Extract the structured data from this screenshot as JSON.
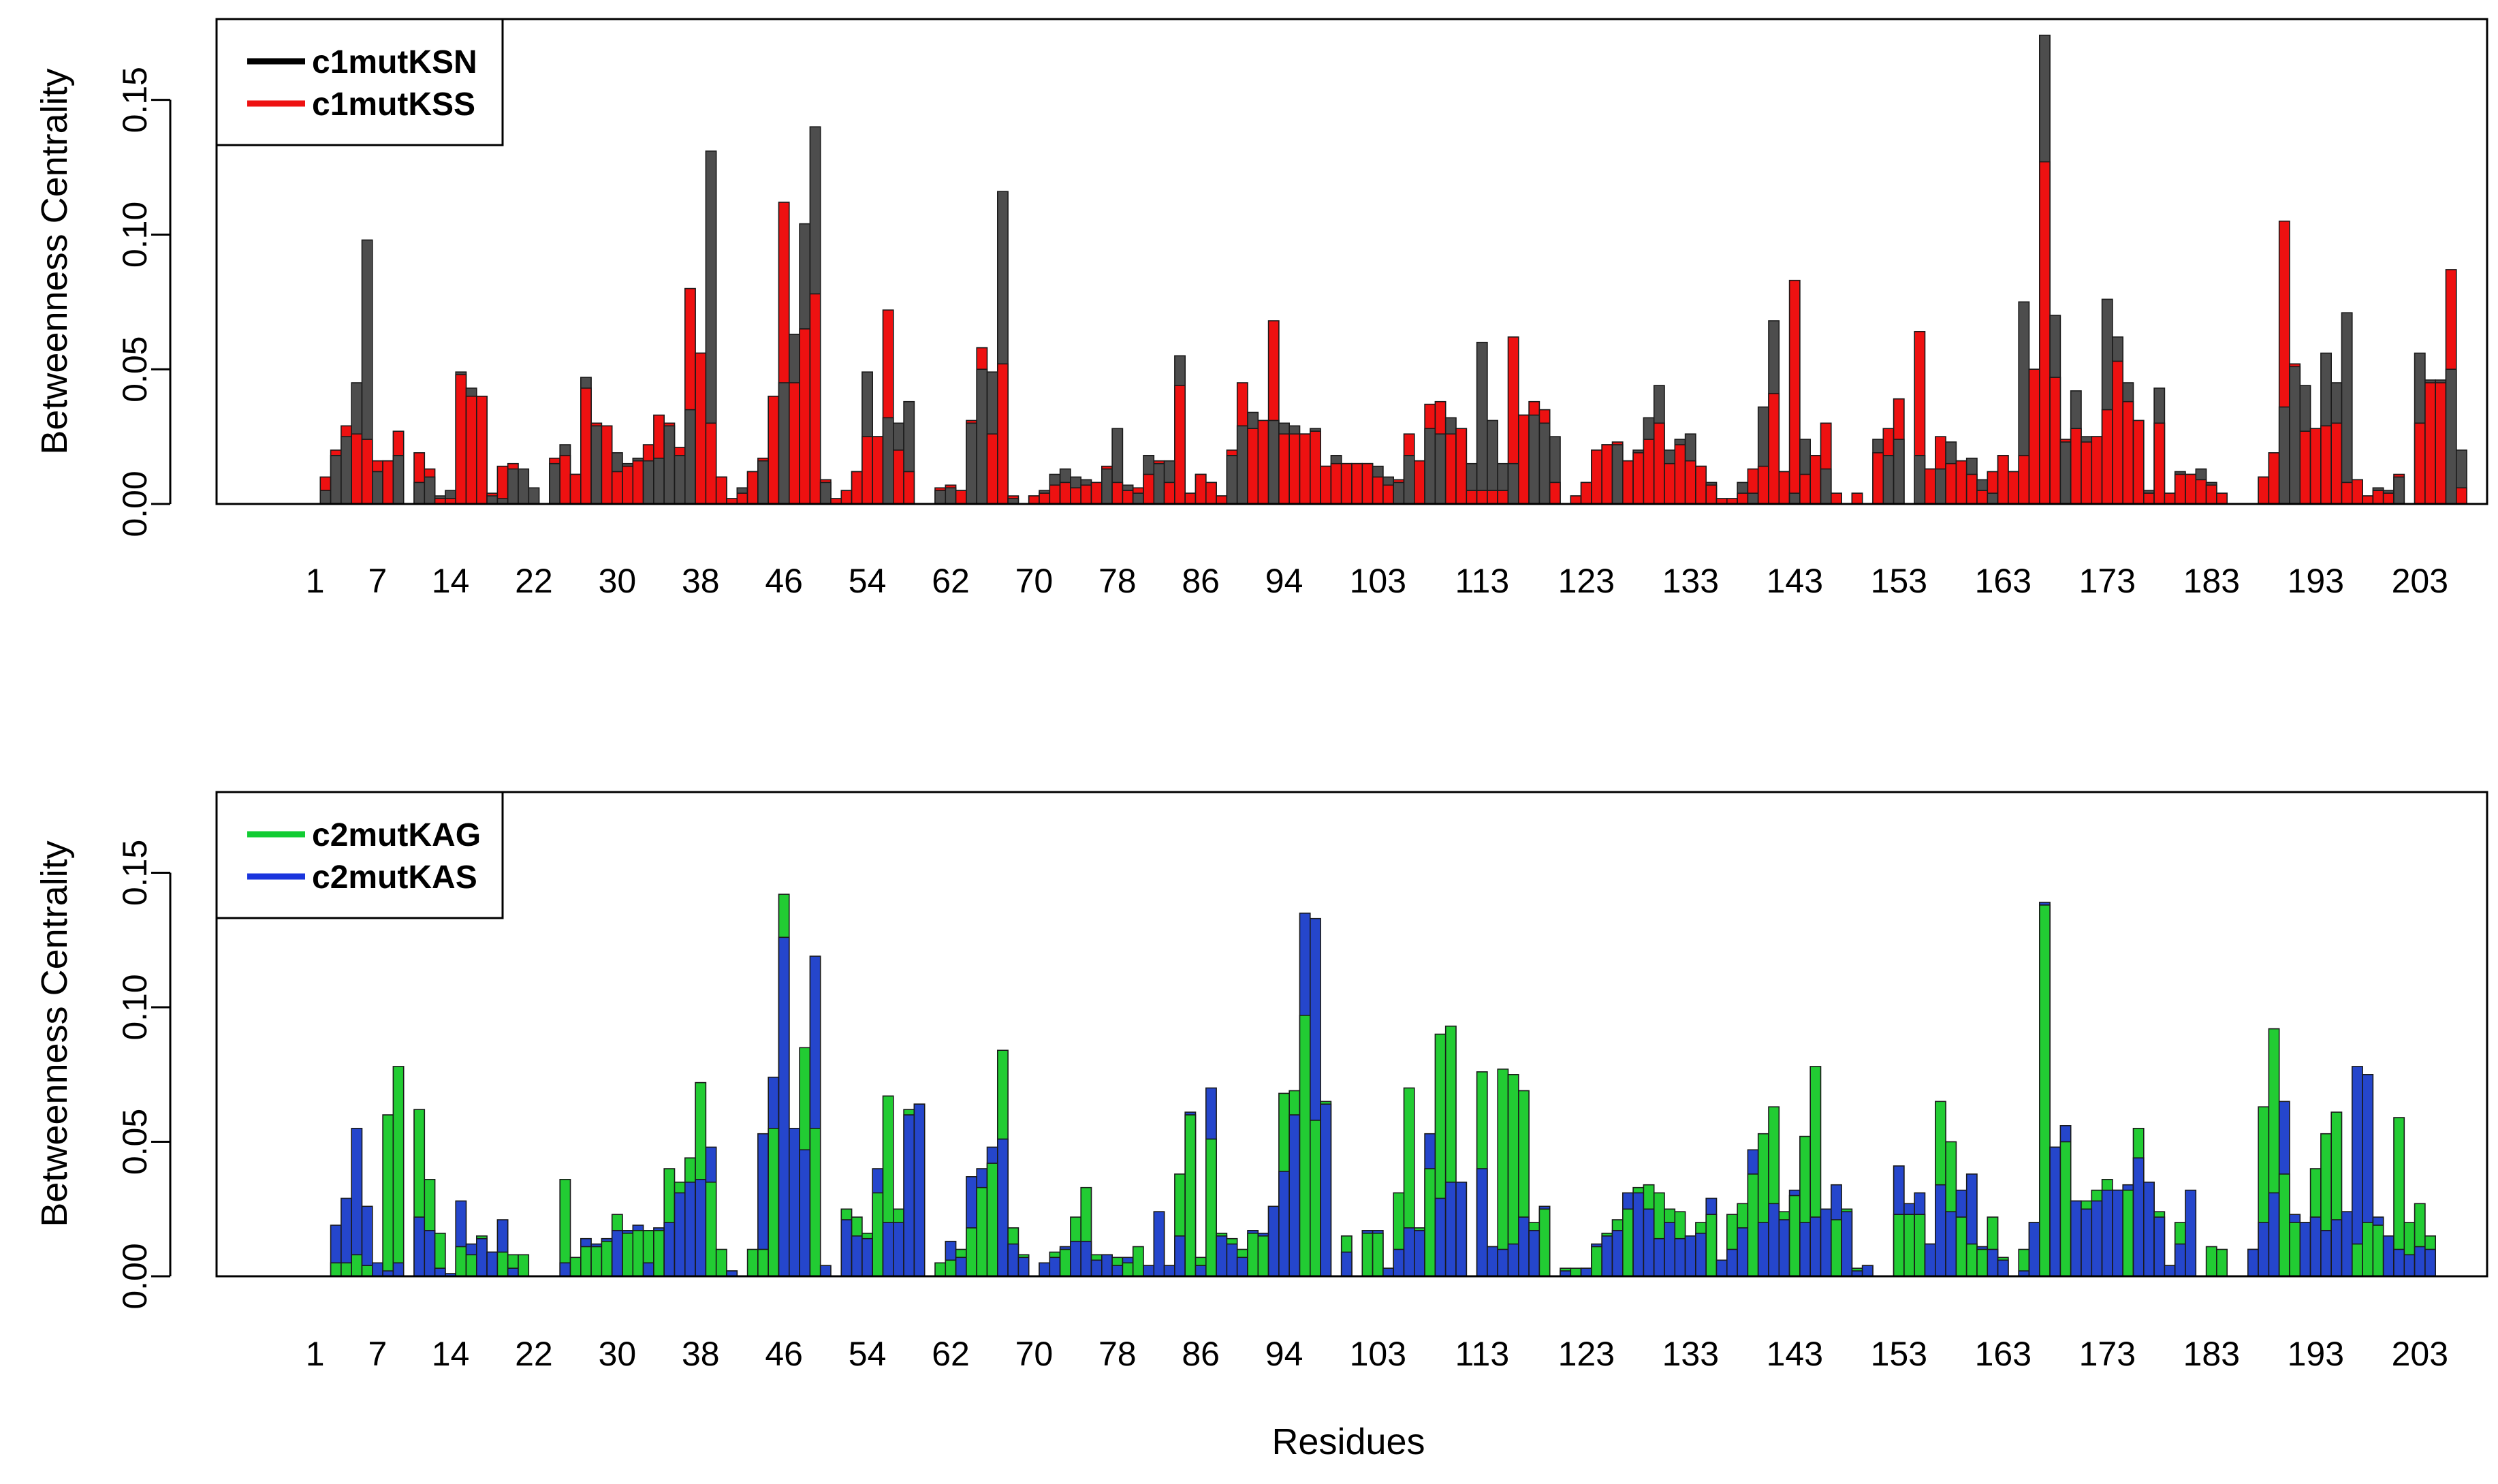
{
  "xlabel": "Residues",
  "chart_data": [
    {
      "type": "bar",
      "ylabel": "Betweenness Centrality",
      "ylim": [
        0,
        0.18
      ],
      "yticks": [
        "0.00",
        "0.05",
        "0.10",
        "0.15"
      ],
      "xticks": [
        "1",
        "7",
        "14",
        "22",
        "30",
        "38",
        "46",
        "54",
        "62",
        "70",
        "78",
        "86",
        "94",
        "103",
        "113",
        "123",
        "133",
        "143",
        "153",
        "163",
        "173",
        "183",
        "193",
        "203"
      ],
      "legend_position": "top-left",
      "legend": [
        {
          "name": "c1mutKSN",
          "color": "#000000"
        },
        {
          "name": "c1mutKSS",
          "color": "#ee1111"
        }
      ],
      "series": [
        {
          "name": "c1mutKSN",
          "color": "#4d4d4d",
          "values": [
            0.0,
            0.005,
            0.018,
            0.025,
            0.045,
            0.098,
            0.012,
            0.016,
            0.018,
            0.0,
            0.008,
            0.01,
            0.003,
            0.005,
            0.049,
            0.043,
            0.04,
            0.003,
            0.002,
            0.013,
            0.013,
            0.006,
            0.0,
            0.015,
            0.022,
            0.011,
            0.047,
            0.029,
            0.029,
            0.019,
            0.015,
            0.017,
            0.016,
            0.017,
            0.029,
            0.018,
            0.035,
            0.056,
            0.131,
            0.01,
            0.002,
            0.006,
            0.012,
            0.016,
            0.04,
            0.045,
            0.063,
            0.104,
            0.14,
            0.008,
            0.002,
            0.005,
            0.012,
            0.049,
            0.025,
            0.032,
            0.03,
            0.038,
            0.0,
            0.0,
            0.005,
            0.006,
            0.005,
            0.03,
            0.05,
            0.049,
            0.116,
            0.002,
            0.0,
            0.003,
            0.005,
            0.011,
            0.013,
            0.01,
            0.009,
            0.008,
            0.013,
            0.028,
            0.007,
            0.004,
            0.018,
            0.015,
            0.016,
            0.055,
            0.004,
            0.011,
            0.008,
            0.003,
            0.018,
            0.029,
            0.034,
            0.031,
            0.031,
            0.03,
            0.029,
            0.026,
            0.028,
            0.014,
            0.018,
            0.015,
            0.015,
            0.015,
            0.014,
            0.01,
            0.008,
            0.018,
            0.016,
            0.028,
            0.026,
            0.032,
            0.028,
            0.015,
            0.06,
            0.031,
            0.015,
            0.015,
            0.033,
            0.033,
            0.03,
            0.025,
            0.0,
            0.003,
            0.008,
            0.02,
            0.022,
            0.022,
            0.016,
            0.02,
            0.032,
            0.044,
            0.02,
            0.024,
            0.026,
            0.014,
            0.008,
            0.002,
            0.002,
            0.008,
            0.004,
            0.036,
            0.068,
            0.012,
            0.004,
            0.024,
            0.018,
            0.013,
            0.004,
            0.0,
            0.004,
            0.0,
            0.024,
            0.018,
            0.024,
            0.0,
            0.018,
            0.013,
            0.013,
            0.023,
            0.016,
            0.017,
            0.009,
            0.004,
            0.018,
            0.012,
            0.075,
            0.05,
            0.174,
            0.07,
            0.023,
            0.042,
            0.025,
            0.025,
            0.076,
            0.062,
            0.045,
            0.031,
            0.005,
            0.043,
            0.004,
            0.012,
            0.011,
            0.013,
            0.008,
            0.004,
            0.0,
            0.0,
            0.0,
            0.01,
            0.019,
            0.036,
            0.051,
            0.044,
            0.028,
            0.056,
            0.045,
            0.071,
            0.009,
            0.003,
            0.006,
            0.005,
            0.01,
            0.0,
            0.056,
            0.046,
            0.046,
            0.05,
            0.02
          ]
        },
        {
          "name": "c1mutKSS",
          "color": "#ee1111",
          "values": [
            0.0,
            0.01,
            0.02,
            0.029,
            0.026,
            0.024,
            0.016,
            0.016,
            0.027,
            0.0,
            0.019,
            0.013,
            0.002,
            0.002,
            0.048,
            0.04,
            0.04,
            0.004,
            0.014,
            0.015,
            0.0,
            0.0,
            0.0,
            0.017,
            0.018,
            0.011,
            0.043,
            0.03,
            0.029,
            0.012,
            0.014,
            0.016,
            0.022,
            0.033,
            0.03,
            0.021,
            0.08,
            0.056,
            0.03,
            0.01,
            0.002,
            0.004,
            0.012,
            0.017,
            0.04,
            0.112,
            0.045,
            0.065,
            0.078,
            0.009,
            0.002,
            0.005,
            0.012,
            0.025,
            0.025,
            0.072,
            0.02,
            0.012,
            0.0,
            0.0,
            0.006,
            0.007,
            0.005,
            0.031,
            0.058,
            0.026,
            0.052,
            0.003,
            0.0,
            0.003,
            0.004,
            0.007,
            0.008,
            0.006,
            0.007,
            0.008,
            0.014,
            0.008,
            0.005,
            0.006,
            0.011,
            0.016,
            0.008,
            0.044,
            0.004,
            0.011,
            0.008,
            0.003,
            0.02,
            0.045,
            0.028,
            0.031,
            0.068,
            0.026,
            0.026,
            0.026,
            0.027,
            0.014,
            0.015,
            0.015,
            0.015,
            0.015,
            0.01,
            0.007,
            0.009,
            0.026,
            0.016,
            0.037,
            0.038,
            0.026,
            0.028,
            0.005,
            0.005,
            0.005,
            0.005,
            0.062,
            0.033,
            0.038,
            0.035,
            0.008,
            0.0,
            0.003,
            0.008,
            0.02,
            0.022,
            0.023,
            0.016,
            0.019,
            0.024,
            0.03,
            0.015,
            0.022,
            0.016,
            0.014,
            0.007,
            0.002,
            0.002,
            0.004,
            0.013,
            0.014,
            0.041,
            0.012,
            0.083,
            0.011,
            0.018,
            0.03,
            0.004,
            0.0,
            0.004,
            0.0,
            0.019,
            0.028,
            0.039,
            0.0,
            0.064,
            0.013,
            0.025,
            0.015,
            0.016,
            0.011,
            0.005,
            0.012,
            0.018,
            0.012,
            0.018,
            0.05,
            0.127,
            0.047,
            0.024,
            0.028,
            0.023,
            0.025,
            0.035,
            0.053,
            0.038,
            0.031,
            0.004,
            0.03,
            0.004,
            0.011,
            0.011,
            0.009,
            0.007,
            0.004,
            0.0,
            0.0,
            0.0,
            0.01,
            0.019,
            0.105,
            0.052,
            0.027,
            0.028,
            0.029,
            0.03,
            0.008,
            0.009,
            0.003,
            0.005,
            0.004,
            0.011,
            0.0,
            0.03,
            0.045,
            0.045,
            0.087,
            0.006
          ]
        }
      ]
    },
    {
      "type": "bar",
      "ylabel": "Betweenness Centrality",
      "ylim": [
        0,
        0.18
      ],
      "yticks": [
        "0.00",
        "0.05",
        "0.10",
        "0.15"
      ],
      "xticks": [
        "1",
        "7",
        "14",
        "22",
        "30",
        "38",
        "46",
        "54",
        "62",
        "70",
        "78",
        "86",
        "94",
        "103",
        "113",
        "123",
        "133",
        "143",
        "153",
        "163",
        "173",
        "183",
        "193",
        "203"
      ],
      "legend_position": "top-left",
      "legend": [
        {
          "name": "c2mutKAG",
          "color": "#11cc33"
        },
        {
          "name": "c2mutKAS",
          "color": "#1a35dd"
        }
      ],
      "series": [
        {
          "name": "c2mutKAG",
          "color": "#22cc33",
          "values": [
            0.0,
            0.0,
            0.005,
            0.005,
            0.008,
            0.004,
            0.005,
            0.06,
            0.078,
            0.0,
            0.062,
            0.036,
            0.016,
            0.0,
            0.011,
            0.008,
            0.015,
            0.009,
            0.009,
            0.008,
            0.008,
            0.0,
            0.0,
            0.0,
            0.036,
            0.007,
            0.011,
            0.011,
            0.013,
            0.023,
            0.016,
            0.017,
            0.017,
            0.017,
            0.04,
            0.035,
            0.044,
            0.072,
            0.035,
            0.01,
            0.002,
            0.0,
            0.01,
            0.01,
            0.055,
            0.142,
            0.055,
            0.085,
            0.055,
            0.0,
            0.0,
            0.025,
            0.022,
            0.016,
            0.031,
            0.067,
            0.025,
            0.062,
            0.064,
            0.0,
            0.005,
            0.006,
            0.01,
            0.018,
            0.033,
            0.042,
            0.084,
            0.018,
            0.008,
            0.0,
            0.005,
            0.009,
            0.01,
            0.022,
            0.033,
            0.008,
            0.008,
            0.007,
            0.005,
            0.011,
            0.004,
            0.024,
            0.004,
            0.038,
            0.06,
            0.007,
            0.051,
            0.016,
            0.014,
            0.01,
            0.016,
            0.015,
            0.026,
            0.068,
            0.069,
            0.097,
            0.058,
            0.065,
            0.0,
            0.015,
            0.0,
            0.016,
            0.016,
            0.003,
            0.031,
            0.07,
            0.018,
            0.04,
            0.09,
            0.093,
            0.035,
            0.0,
            0.076,
            0.011,
            0.077,
            0.075,
            0.069,
            0.02,
            0.025,
            0.0,
            0.003,
            0.003,
            0.003,
            0.011,
            0.016,
            0.021,
            0.025,
            0.033,
            0.034,
            0.031,
            0.025,
            0.024,
            0.015,
            0.02,
            0.023,
            0.006,
            0.023,
            0.027,
            0.038,
            0.053,
            0.063,
            0.024,
            0.03,
            0.052,
            0.078,
            0.025,
            0.021,
            0.025,
            0.003,
            0.004,
            0.0,
            0.0,
            0.023,
            0.023,
            0.023,
            0.012,
            0.065,
            0.05,
            0.022,
            0.012,
            0.01,
            0.022,
            0.007,
            0.0,
            0.01,
            0.02,
            0.138,
            0.048,
            0.05,
            0.028,
            0.028,
            0.032,
            0.036,
            0.032,
            0.032,
            0.055,
            0.035,
            0.024,
            0.004,
            0.02,
            0.0,
            0.0,
            0.011,
            0.01,
            0.0,
            0.0,
            0.01,
            0.063,
            0.092,
            0.038,
            0.02,
            0.02,
            0.04,
            0.053,
            0.061,
            0.024,
            0.012,
            0.02,
            0.019,
            0.015,
            0.059,
            0.02,
            0.027,
            0.015
          ]
        },
        {
          "name": "c2mutKAS",
          "color": "#2546cc",
          "values": [
            0.0,
            0.0,
            0.019,
            0.029,
            0.055,
            0.026,
            0.005,
            0.002,
            0.005,
            0.0,
            0.022,
            0.017,
            0.003,
            0.001,
            0.028,
            0.012,
            0.014,
            0.009,
            0.021,
            0.003,
            0.0,
            0.0,
            0.0,
            0.0,
            0.005,
            0.0,
            0.014,
            0.012,
            0.014,
            0.017,
            0.017,
            0.019,
            0.005,
            0.018,
            0.02,
            0.031,
            0.035,
            0.036,
            0.048,
            0.0,
            0.002,
            0.0,
            0.0,
            0.053,
            0.074,
            0.126,
            0.055,
            0.047,
            0.119,
            0.004,
            0.0,
            0.021,
            0.015,
            0.014,
            0.04,
            0.02,
            0.02,
            0.06,
            0.064,
            0.0,
            0.0,
            0.013,
            0.007,
            0.037,
            0.04,
            0.048,
            0.051,
            0.012,
            0.007,
            0.0,
            0.005,
            0.007,
            0.011,
            0.013,
            0.013,
            0.006,
            0.008,
            0.004,
            0.007,
            0.0,
            0.004,
            0.024,
            0.004,
            0.015,
            0.061,
            0.004,
            0.07,
            0.015,
            0.012,
            0.007,
            0.017,
            0.016,
            0.026,
            0.039,
            0.06,
            0.135,
            0.133,
            0.064,
            0.0,
            0.009,
            0.0,
            0.017,
            0.017,
            0.003,
            0.01,
            0.018,
            0.017,
            0.053,
            0.029,
            0.035,
            0.035,
            0.0,
            0.04,
            0.011,
            0.01,
            0.012,
            0.022,
            0.017,
            0.026,
            0.0,
            0.002,
            0.0,
            0.003,
            0.012,
            0.015,
            0.017,
            0.031,
            0.031,
            0.025,
            0.014,
            0.02,
            0.014,
            0.015,
            0.016,
            0.029,
            0.006,
            0.01,
            0.018,
            0.047,
            0.02,
            0.027,
            0.021,
            0.032,
            0.02,
            0.022,
            0.025,
            0.034,
            0.024,
            0.002,
            0.004,
            0.0,
            0.0,
            0.041,
            0.027,
            0.031,
            0.012,
            0.034,
            0.024,
            0.032,
            0.038,
            0.011,
            0.01,
            0.006,
            0.0,
            0.002,
            0.02,
            0.139,
            0.048,
            0.056,
            0.028,
            0.025,
            0.028,
            0.032,
            0.032,
            0.034,
            0.044,
            0.035,
            0.022,
            0.004,
            0.012,
            0.032,
            0.0,
            0.0,
            0.0,
            0.0,
            0.0,
            0.01,
            0.02,
            0.031,
            0.065,
            0.023,
            0.02,
            0.022,
            0.017,
            0.021,
            0.024,
            0.078,
            0.075,
            0.022,
            0.015,
            0.01,
            0.008,
            0.011,
            0.01
          ]
        }
      ]
    }
  ]
}
